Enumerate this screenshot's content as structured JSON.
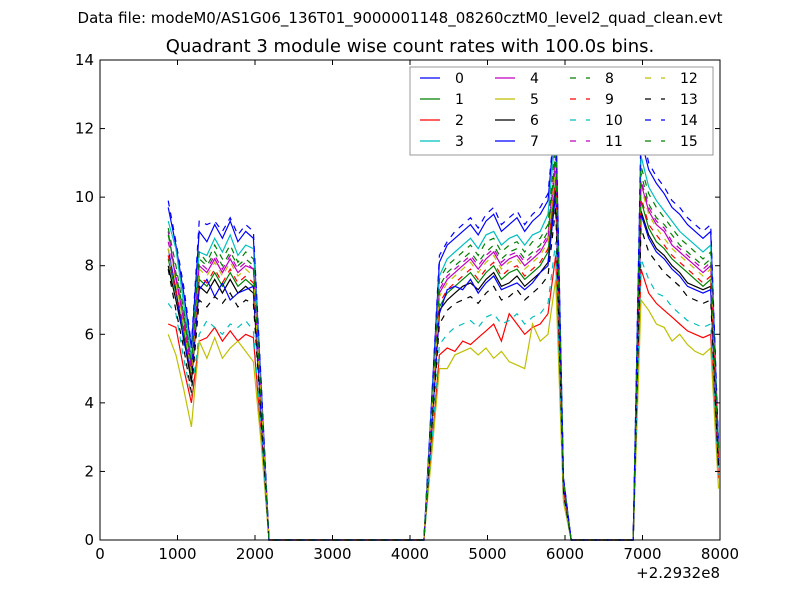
{
  "chart_data": {
    "type": "line",
    "suptitle": "Data file: modeM0/AS1G06_136T01_9000001148_08260cztM0_level2_quad_clean.evt",
    "title": "Quadrant 3 module wise count rates with 100.0s bins.",
    "xlabel": "",
    "ylabel": "",
    "xlim": [
      0,
      8000
    ],
    "ylim": [
      0,
      14
    ],
    "x_offset_text": "+2.2932e8",
    "xticks": [
      0,
      1000,
      2000,
      3000,
      4000,
      5000,
      6000,
      7000,
      8000
    ],
    "yticks": [
      0,
      2,
      4,
      6,
      8,
      10,
      12,
      14
    ],
    "grid": false,
    "legend_position": "top-right",
    "legend_columns": 4,
    "x": [
      880,
      980,
      1080,
      1180,
      1280,
      1380,
      1480,
      1580,
      1680,
      1780,
      1880,
      1980,
      2080,
      2180,
      4180,
      4280,
      4380,
      4480,
      4580,
      4680,
      4780,
      4880,
      4980,
      5080,
      5180,
      5280,
      5380,
      5480,
      5580,
      5680,
      5780,
      5880,
      5980,
      6080,
      6880,
      6980,
      7080,
      7180,
      7280,
      7380,
      7480,
      7580,
      7680,
      7780,
      7880,
      7980
    ],
    "series": [
      {
        "name": "0",
        "color": "#0000ff",
        "style": "solid",
        "values": [
          9.7,
          8.6,
          7.2,
          5.6,
          9.0,
          8.7,
          9.2,
          8.8,
          9.3,
          8.7,
          9.0,
          8.8,
          4.5,
          0,
          0,
          4.1,
          8.1,
          8.6,
          8.8,
          9.0,
          9.2,
          8.9,
          9.3,
          9.5,
          9.0,
          9.2,
          9.4,
          9.0,
          9.3,
          9.5,
          9.9,
          12.4,
          1.8,
          0,
          0,
          11.7,
          10.8,
          10.4,
          10.1,
          9.7,
          9.5,
          9.2,
          9.0,
          8.8,
          9.0,
          2.7
        ]
      },
      {
        "name": "1",
        "color": "#008000",
        "style": "solid",
        "values": [
          8.2,
          7.2,
          6.1,
          4.7,
          7.6,
          7.4,
          7.8,
          7.4,
          7.8,
          7.4,
          7.6,
          7.4,
          3.8,
          0,
          0,
          3.4,
          6.8,
          7.2,
          7.4,
          7.6,
          7.8,
          7.5,
          7.8,
          8.0,
          7.6,
          7.8,
          7.9,
          7.6,
          7.8,
          8.0,
          8.4,
          10.5,
          1.5,
          0,
          0,
          9.9,
          9.1,
          8.7,
          8.5,
          8.2,
          8.0,
          7.8,
          7.6,
          7.4,
          7.6,
          2.3
        ]
      },
      {
        "name": "2",
        "color": "#ff0000",
        "style": "solid",
        "values": [
          6.3,
          6.2,
          5.0,
          4.0,
          5.8,
          5.9,
          6.2,
          5.8,
          6.1,
          5.8,
          6.0,
          5.9,
          3.0,
          0,
          0,
          2.7,
          5.4,
          5.6,
          5.5,
          5.8,
          5.7,
          5.9,
          6.1,
          6.3,
          5.8,
          6.6,
          6.3,
          6.0,
          6.2,
          6.3,
          6.6,
          8.3,
          1.2,
          0,
          0,
          7.9,
          7.2,
          6.9,
          6.7,
          6.5,
          6.3,
          6.1,
          6.0,
          5.9,
          6.0,
          1.8
        ]
      },
      {
        "name": "3",
        "color": "#00bfbf",
        "style": "solid",
        "values": [
          9.3,
          8.5,
          6.9,
          5.3,
          8.4,
          8.3,
          8.8,
          8.4,
          8.9,
          8.3,
          8.6,
          8.5,
          4.3,
          0,
          0,
          3.9,
          7.7,
          8.2,
          8.4,
          8.6,
          8.8,
          8.5,
          8.9,
          9.0,
          8.6,
          8.8,
          8.9,
          8.6,
          8.9,
          9.0,
          9.5,
          11.9,
          1.7,
          0,
          0,
          11.2,
          10.3,
          9.9,
          9.6,
          9.3,
          9.0,
          8.8,
          8.6,
          8.4,
          8.6,
          2.6
        ]
      },
      {
        "name": "4",
        "color": "#bf00bf",
        "style": "solid",
        "values": [
          9.0,
          7.6,
          6.4,
          5.0,
          8.0,
          7.8,
          8.2,
          7.8,
          8.2,
          7.8,
          8.0,
          7.9,
          4.0,
          0,
          0,
          3.6,
          7.2,
          7.6,
          7.8,
          8.0,
          8.2,
          7.9,
          8.2,
          8.4,
          8.0,
          8.2,
          8.3,
          8.0,
          8.2,
          8.4,
          8.8,
          11.0,
          1.6,
          0,
          0,
          10.4,
          9.6,
          9.2,
          9.0,
          8.6,
          8.4,
          8.2,
          8.0,
          7.8,
          8.0,
          2.4
        ]
      },
      {
        "name": "5",
        "color": "#bfbf00",
        "style": "solid",
        "values": [
          6.0,
          5.4,
          4.4,
          3.3,
          5.8,
          5.3,
          5.9,
          5.3,
          5.6,
          5.8,
          5.5,
          5.2,
          2.8,
          0,
          0,
          2.5,
          5.0,
          5.0,
          5.4,
          5.5,
          5.6,
          5.4,
          5.6,
          5.3,
          5.5,
          5.2,
          5.1,
          5.0,
          6.3,
          5.8,
          6.0,
          7.6,
          1.1,
          0,
          0,
          7.0,
          6.7,
          6.3,
          6.2,
          5.8,
          6.0,
          5.7,
          5.5,
          5.4,
          5.6,
          1.5
        ]
      },
      {
        "name": "6",
        "color": "#000000",
        "style": "solid",
        "values": [
          8.0,
          7.0,
          5.9,
          4.6,
          7.4,
          7.2,
          7.6,
          7.2,
          7.6,
          7.2,
          7.4,
          7.2,
          3.7,
          0,
          0,
          3.3,
          6.7,
          7.0,
          7.2,
          7.4,
          7.5,
          7.3,
          7.6,
          7.8,
          7.4,
          7.5,
          7.7,
          7.4,
          7.6,
          7.8,
          8.1,
          10.2,
          1.5,
          0,
          0,
          9.6,
          8.9,
          8.5,
          8.3,
          8.0,
          7.8,
          7.5,
          7.4,
          7.3,
          7.4,
          2.2
        ]
      },
      {
        "name": "7",
        "color": "#0000ff",
        "style": "solid",
        "values": [
          8.5,
          7.3,
          5.8,
          4.9,
          7.3,
          7.6,
          7.1,
          7.5,
          7.0,
          7.2,
          7.3,
          7.4,
          3.6,
          0,
          0,
          3.3,
          6.6,
          7.3,
          7.4,
          7.3,
          7.6,
          7.2,
          7.5,
          7.7,
          7.3,
          7.4,
          7.5,
          7.3,
          7.5,
          7.8,
          8.0,
          10.1,
          1.5,
          0,
          0,
          9.5,
          8.8,
          8.4,
          8.2,
          7.9,
          7.7,
          7.4,
          7.3,
          7.2,
          7.3,
          2.2
        ]
      },
      {
        "name": "8",
        "color": "#008000",
        "style": "dashed",
        "values": [
          9.1,
          8.0,
          6.7,
          5.2,
          8.4,
          8.1,
          8.6,
          8.2,
          8.6,
          8.1,
          8.4,
          8.2,
          4.2,
          0,
          0,
          3.8,
          7.6,
          8.0,
          8.2,
          8.4,
          8.6,
          8.3,
          8.7,
          8.8,
          8.4,
          8.6,
          8.7,
          8.4,
          8.7,
          8.8,
          9.2,
          11.6,
          1.7,
          0,
          0,
          10.9,
          10.1,
          9.7,
          9.4,
          9.1,
          8.8,
          8.6,
          8.4,
          8.2,
          8.4,
          2.5
        ]
      },
      {
        "name": "9",
        "color": "#ff0000",
        "style": "dashed",
        "values": [
          8.3,
          7.3,
          6.2,
          4.8,
          7.7,
          7.5,
          7.9,
          7.5,
          7.9,
          7.5,
          7.7,
          7.5,
          3.9,
          0,
          0,
          3.5,
          6.9,
          7.3,
          7.5,
          7.7,
          7.9,
          7.6,
          7.9,
          8.1,
          7.7,
          7.9,
          8.0,
          7.7,
          7.9,
          8.1,
          8.5,
          10.6,
          1.5,
          0,
          0,
          10.0,
          9.2,
          8.9,
          8.6,
          8.3,
          8.1,
          7.9,
          7.7,
          7.5,
          7.7,
          2.3
        ]
      },
      {
        "name": "10",
        "color": "#00bfbf",
        "style": "dashed",
        "values": [
          6.9,
          6.6,
          5.3,
          4.2,
          6.0,
          6.4,
          6.2,
          6.0,
          6.3,
          6.2,
          6.4,
          6.1,
          3.2,
          0,
          0,
          2.8,
          5.7,
          6.0,
          6.2,
          6.3,
          6.4,
          6.2,
          6.5,
          6.6,
          6.3,
          6.4,
          6.6,
          6.3,
          6.5,
          6.6,
          6.9,
          8.7,
          1.3,
          0,
          0,
          8.2,
          7.6,
          7.2,
          7.1,
          6.8,
          6.6,
          6.4,
          6.3,
          6.2,
          6.3,
          1.9
        ]
      },
      {
        "name": "11",
        "color": "#bf00bf",
        "style": "dashed",
        "values": [
          8.7,
          7.7,
          6.5,
          5.0,
          8.1,
          7.9,
          8.3,
          7.9,
          8.3,
          7.9,
          8.1,
          7.9,
          4.1,
          0,
          0,
          3.6,
          7.3,
          7.7,
          7.9,
          8.1,
          8.3,
          8.0,
          8.3,
          8.5,
          8.1,
          8.3,
          8.4,
          8.1,
          8.3,
          8.5,
          8.9,
          11.2,
          1.6,
          0,
          0,
          10.5,
          9.7,
          9.3,
          9.1,
          8.7,
          8.5,
          8.3,
          8.1,
          7.9,
          8.1,
          2.4
        ]
      },
      {
        "name": "12",
        "color": "#bfbf00",
        "style": "dashed",
        "values": [
          8.5,
          7.5,
          6.3,
          4.9,
          7.9,
          7.7,
          8.1,
          7.7,
          8.1,
          7.7,
          7.9,
          7.7,
          4.0,
          0,
          0,
          3.6,
          7.1,
          7.5,
          7.7,
          7.9,
          8.1,
          7.8,
          8.1,
          8.3,
          7.9,
          8.1,
          8.2,
          7.9,
          8.1,
          8.3,
          8.7,
          10.9,
          1.6,
          0,
          0,
          10.3,
          9.5,
          9.1,
          8.8,
          8.5,
          8.3,
          8.1,
          7.9,
          7.7,
          7.9,
          2.4
        ]
      },
      {
        "name": "13",
        "color": "#000000",
        "style": "dashed",
        "values": [
          7.9,
          6.7,
          5.6,
          4.3,
          7.0,
          6.8,
          7.1,
          6.9,
          7.2,
          6.8,
          7.0,
          6.9,
          3.5,
          0,
          0,
          3.2,
          6.3,
          6.7,
          6.9,
          7.0,
          7.1,
          6.9,
          7.2,
          7.4,
          7.0,
          7.1,
          7.3,
          7.0,
          7.2,
          7.4,
          7.7,
          9.7,
          1.4,
          0,
          0,
          9.1,
          8.4,
          8.1,
          7.8,
          7.6,
          7.4,
          7.1,
          7.0,
          6.9,
          7.0,
          2.1
        ]
      },
      {
        "name": "14",
        "color": "#0000ff",
        "style": "dashed",
        "values": [
          9.9,
          8.7,
          7.4,
          5.7,
          9.3,
          9.2,
          9.3,
          9.0,
          9.4,
          8.9,
          9.2,
          9.0,
          4.6,
          0,
          0,
          4.1,
          8.3,
          8.7,
          9.0,
          9.2,
          9.4,
          9.1,
          9.5,
          9.7,
          9.2,
          9.4,
          9.6,
          9.2,
          9.5,
          9.7,
          10.1,
          12.5,
          1.8,
          0,
          0,
          12.0,
          11.0,
          10.6,
          10.3,
          9.9,
          9.7,
          9.4,
          9.2,
          9.0,
          9.2,
          2.8
        ]
      },
      {
        "name": "15",
        "color": "#008000",
        "style": "dashed",
        "values": [
          8.9,
          7.8,
          6.6,
          5.1,
          8.2,
          8.0,
          8.4,
          8.0,
          8.4,
          8.0,
          8.2,
          8.0,
          4.1,
          0,
          0,
          3.7,
          7.4,
          7.8,
          8.0,
          8.2,
          8.4,
          8.1,
          8.4,
          8.6,
          8.2,
          8.4,
          8.5,
          8.2,
          8.4,
          8.6,
          9.0,
          11.3,
          1.6,
          0,
          0,
          10.7,
          9.8,
          9.4,
          9.2,
          8.9,
          8.6,
          8.4,
          8.2,
          8.0,
          8.2,
          2.5
        ]
      }
    ]
  }
}
